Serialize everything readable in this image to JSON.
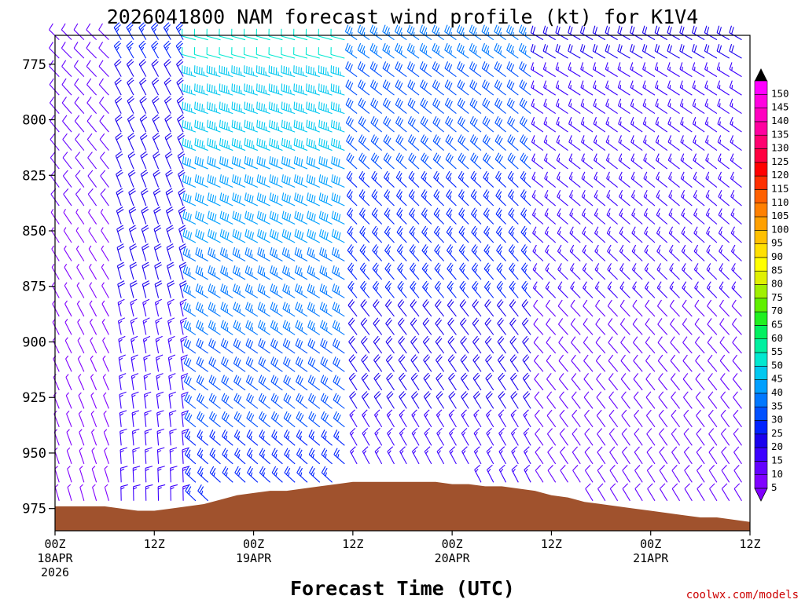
{
  "chart_data": {
    "type": "wind-barb-profile",
    "title": "2026041800 NAM forecast wind profile (kt) for K1V4",
    "xlabel": "Forecast Time (UTC)",
    "credit": "coolwx.com/models",
    "y_ticks": [
      775,
      800,
      825,
      850,
      875,
      900,
      925,
      950,
      975
    ],
    "ylim": [
      762,
      985
    ],
    "xlim_hours": [
      0,
      84
    ],
    "x_ticks": [
      {
        "hour": 0,
        "lines": [
          "00Z",
          "18APR",
          "2026"
        ]
      },
      {
        "hour": 12,
        "lines": [
          "12Z"
        ]
      },
      {
        "hour": 24,
        "lines": [
          "00Z",
          "19APR"
        ]
      },
      {
        "hour": 36,
        "lines": [
          "12Z"
        ]
      },
      {
        "hour": 48,
        "lines": [
          "00Z",
          "20APR"
        ]
      },
      {
        "hour": 60,
        "lines": [
          "12Z"
        ]
      },
      {
        "hour": 72,
        "lines": [
          "00Z",
          "21APR"
        ]
      },
      {
        "hour": 84,
        "lines": [
          "12Z"
        ]
      }
    ],
    "colorbar": {
      "levels": [
        5,
        10,
        15,
        20,
        25,
        30,
        35,
        40,
        45,
        50,
        55,
        60,
        65,
        70,
        75,
        80,
        85,
        90,
        95,
        100,
        105,
        110,
        115,
        120,
        125,
        130,
        135,
        140,
        145,
        150
      ],
      "colors": [
        "#8000ff",
        "#6400ff",
        "#3c00ff",
        "#1a00ee",
        "#0022ff",
        "#0050ff",
        "#0078ff",
        "#00a0ff",
        "#00c8f0",
        "#00e8d0",
        "#00f0a0",
        "#00f060",
        "#20f020",
        "#60f000",
        "#a0f000",
        "#e0f000",
        "#ffff00",
        "#ffe000",
        "#ffc000",
        "#ffa000",
        "#ff8000",
        "#ff6000",
        "#ff3000",
        "#ff0000",
        "#ff0040",
        "#ff0070",
        "#ff00a0",
        "#ff00c0",
        "#ff00e0",
        "#ff00ff"
      ]
    },
    "terrain_pressure_by_hour": [
      [
        0,
        974
      ],
      [
        6,
        974
      ],
      [
        8,
        975
      ],
      [
        10,
        976
      ],
      [
        12,
        976
      ],
      [
        14,
        975
      ],
      [
        16,
        974
      ],
      [
        18,
        973
      ],
      [
        20,
        971
      ],
      [
        22,
        969
      ],
      [
        24,
        968
      ],
      [
        26,
        967
      ],
      [
        28,
        967
      ],
      [
        30,
        966
      ],
      [
        32,
        965
      ],
      [
        34,
        964
      ],
      [
        36,
        963
      ],
      [
        38,
        963
      ],
      [
        40,
        963
      ],
      [
        42,
        963
      ],
      [
        44,
        963
      ],
      [
        46,
        963
      ],
      [
        48,
        964
      ],
      [
        50,
        964
      ],
      [
        52,
        965
      ],
      [
        54,
        965
      ],
      [
        56,
        966
      ],
      [
        58,
        967
      ],
      [
        60,
        969
      ],
      [
        62,
        970
      ],
      [
        64,
        972
      ],
      [
        66,
        973
      ],
      [
        68,
        974
      ],
      [
        70,
        975
      ],
      [
        72,
        976
      ],
      [
        74,
        977
      ],
      [
        76,
        978
      ],
      [
        78,
        979
      ],
      [
        80,
        979
      ],
      [
        82,
        980
      ],
      [
        84,
        981
      ]
    ],
    "wind_regimes": [
      {
        "hours": [
          0,
          8
        ],
        "direction_deg": 330,
        "speed_kt": [
          5,
          12
        ]
      },
      {
        "hours": [
          8,
          17
        ],
        "direction_deg": 345,
        "speed_kt": [
          15,
          25
        ]
      },
      {
        "hours": [
          17,
          36
        ],
        "direction_deg": 300,
        "speed_kt": [
          25,
          50
        ]
      },
      {
        "hours": [
          36,
          59
        ],
        "direction_deg": 320,
        "speed_kt": [
          15,
          35
        ]
      },
      {
        "hours": [
          59,
          84
        ],
        "direction_deg": 315,
        "speed_kt": [
          10,
          20
        ]
      }
    ]
  }
}
